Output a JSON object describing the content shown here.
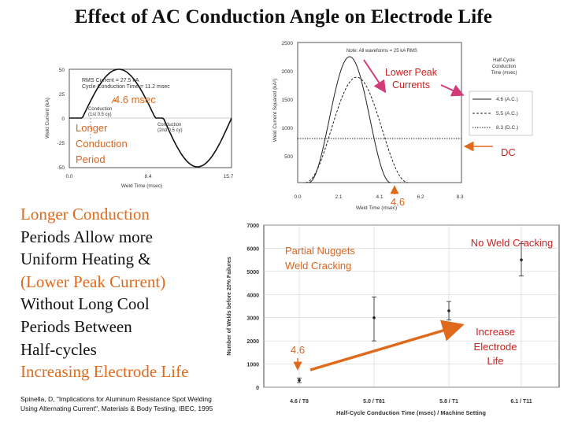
{
  "title": "Effect of AC Conduction Angle on Electrode Life",
  "left_text": {
    "line1": "Longer Conduction",
    "line2": "Periods Allow more",
    "line3": "Uniform Heating &",
    "line4": "(Lower Peak Current)",
    "line5": "Without Long Cool",
    "line6": "Periods Between",
    "line7": "Half-cycles",
    "line8": "Increasing Electrode Life"
  },
  "citation": "Spinella, D, \"Implications for Aluminum Resistance Spot Welding Using Alternating Current\", Materials & Body Testing, IBEC, 1995",
  "chart1": {
    "ylabel": "Weld Current (kA)",
    "xlabel": "Weld Time (msec)",
    "yticks": [
      "50",
      "25",
      "0",
      "-25",
      "-50"
    ],
    "xticks": [
      "0.0",
      "8.4",
      "15.7"
    ],
    "note_rms": "RMS Current = 27.5 kA",
    "note_cycle": "Cycle Conduction Time = 11.2 msec",
    "cond1": "Conduction",
    "cond1b": "(1st 0.5 cy)",
    "cond2": "Conduction",
    "cond2b": "(2nd 0.5 cy)",
    "ann_msec": "4.6 msec",
    "ann_longer1": "Longer",
    "ann_longer2": "Conduction",
    "ann_longer3": "Period"
  },
  "chart2": {
    "ylabel": "Weld Current Squared (kA²)",
    "xlabel": "Weld Time (msec)",
    "yticks": [
      "2500",
      "2000",
      "1500",
      "1000",
      "500"
    ],
    "xticks": [
      "0.0",
      "2.1",
      "4.1",
      "6.2",
      "8.3"
    ],
    "note": "Note: All waveforms = 25 kA RMS",
    "legend_title1": "Half-Cycle",
    "legend_title2": "Conduction",
    "legend_title3": "Time (msec)",
    "legend": [
      "4.6 (A.C.)",
      "5.5 (A.C.)",
      "8.3 (D.C.)"
    ],
    "ann_lower1": "Lower Peak",
    "ann_lower2": "Currents",
    "ann_dc": "DC",
    "ann_46": "4.6"
  },
  "chart_data": {
    "type": "scatter",
    "ylabel": "Number of Welds before 20% Failures",
    "xlabel": "Half-Cycle Conduction Time (msec) / Machine Setting",
    "categories": [
      "4.6 / T8",
      "5.0 / T81",
      "5.8 / T1",
      "6.1 / T11"
    ],
    "yticks": [
      "7000",
      "6000",
      "5000",
      "4000",
      "3000",
      "2000",
      "1000",
      "0"
    ],
    "ylim": [
      0,
      7000
    ],
    "points": [
      {
        "x": "4.6 / T8",
        "y": 300,
        "low": 200,
        "high": 400
      },
      {
        "x": "5.0 / T81",
        "y": 3000,
        "low": 2000,
        "high": 3900
      },
      {
        "x": "5.8 / T1",
        "y": 3300,
        "low": 2900,
        "high": 3700
      },
      {
        "x": "6.1 / T11",
        "y": 5500,
        "low": 4800,
        "high": 6200
      }
    ],
    "ann_partial1": "Partial Nuggets",
    "ann_partial2": "Weld Cracking",
    "ann_nocrack": "No Weld Cracking",
    "ann_inc1": "Increase",
    "ann_inc2": "Electrode",
    "ann_inc3": "Life",
    "ann_46": "4.6"
  },
  "colors": {
    "orange": "#e06a1b",
    "red_annotation": "#cc2222",
    "arrow_magenta": "#d23b7a"
  }
}
